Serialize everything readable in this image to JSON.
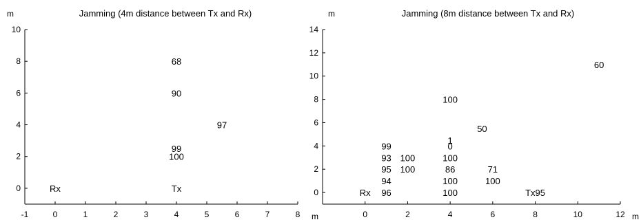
{
  "chart_data": [
    {
      "type": "scatter",
      "title": "Jamming (4m distance between Tx and Rx)",
      "xlabel": "m",
      "ylabel": "m",
      "xlim": [
        -1,
        8
      ],
      "ylim": [
        -1,
        10
      ],
      "xticks": [
        -1,
        0,
        1,
        2,
        3,
        4,
        5,
        6,
        7,
        8
      ],
      "yticks": [
        0,
        2,
        4,
        6,
        8,
        10
      ],
      "grid": false,
      "points": [
        {
          "x": 0,
          "y": 0,
          "label": "Rx"
        },
        {
          "x": 4,
          "y": 0,
          "label": "Tx"
        },
        {
          "x": 4,
          "y": 2,
          "label": "100"
        },
        {
          "x": 4,
          "y": 2.5,
          "label": "99"
        },
        {
          "x": 5.5,
          "y": 4,
          "label": "97"
        },
        {
          "x": 4,
          "y": 6,
          "label": "90"
        },
        {
          "x": 4,
          "y": 8,
          "label": "68"
        }
      ]
    },
    {
      "type": "scatter",
      "title": "Jamming (8m distance between Tx and Rx)",
      "xlabel": "m",
      "ylabel": "m",
      "xlim": [
        -2,
        12
      ],
      "ylim": [
        -1,
        14
      ],
      "xticks": [
        0,
        2,
        4,
        6,
        8,
        10,
        12
      ],
      "yticks": [
        0,
        2,
        4,
        6,
        8,
        10,
        12,
        14
      ],
      "grid": false,
      "points": [
        {
          "x": 0,
          "y": 0,
          "label": "Rx"
        },
        {
          "x": 1,
          "y": 0,
          "label": "96"
        },
        {
          "x": 1,
          "y": 1,
          "label": "94"
        },
        {
          "x": 1,
          "y": 2,
          "label": "95"
        },
        {
          "x": 1,
          "y": 3,
          "label": "93"
        },
        {
          "x": 1,
          "y": 4,
          "label": "99"
        },
        {
          "x": 2,
          "y": 2,
          "label": "100"
        },
        {
          "x": 2,
          "y": 3,
          "label": "100"
        },
        {
          "x": 4,
          "y": 0,
          "label": "100"
        },
        {
          "x": 4,
          "y": 1,
          "label": "100"
        },
        {
          "x": 4,
          "y": 2,
          "label": "86"
        },
        {
          "x": 4,
          "y": 3,
          "label": "100"
        },
        {
          "x": 4,
          "y": 4,
          "label": "0"
        },
        {
          "x": 4,
          "y": 4.5,
          "label": "1"
        },
        {
          "x": 4,
          "y": 8,
          "label": "100"
        },
        {
          "x": 5.5,
          "y": 5.5,
          "label": "50"
        },
        {
          "x": 6,
          "y": 1,
          "label": "100"
        },
        {
          "x": 6,
          "y": 2,
          "label": "71"
        },
        {
          "x": 8,
          "y": 0,
          "label": "Tx95"
        },
        {
          "x": 11,
          "y": 11,
          "label": "60"
        }
      ]
    }
  ]
}
